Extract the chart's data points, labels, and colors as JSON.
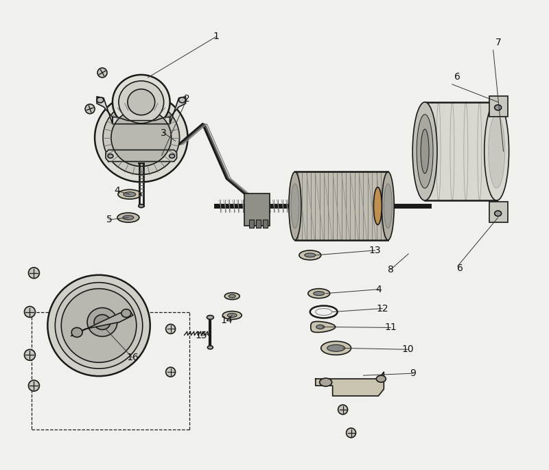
{
  "bg_color": "#f0f0ec",
  "line_color": "#1a1a1a",
  "label_color": "#222222",
  "title": "",
  "figsize": [
    8.0,
    6.85
  ],
  "dpi": 100
}
